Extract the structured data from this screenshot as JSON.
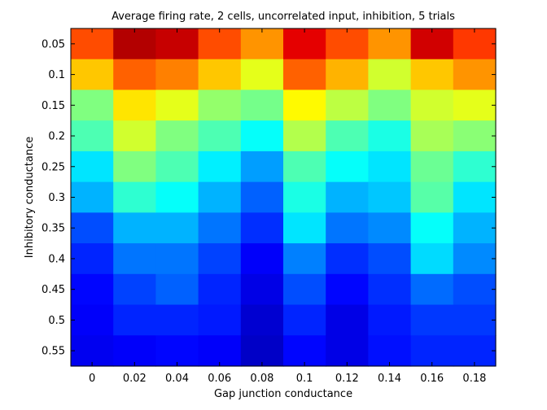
{
  "chart_data": {
    "type": "heatmap",
    "title": "Average firing rate, 2 cells, uncorrelated input, inhibition, 5 trials",
    "xlabel": "Gap junction conductance",
    "ylabel": "Inhibitory conductance",
    "x_tick_labels": [
      "0",
      "0.02",
      "0.04",
      "0.06",
      "0.08",
      "0.1",
      "0.12",
      "0.14",
      "0.16",
      "0.18"
    ],
    "y_tick_labels": [
      "0.05",
      "0.1",
      "0.15",
      "0.2",
      "0.25",
      "0.3",
      "0.35",
      "0.4",
      "0.45",
      "0.5",
      "0.55"
    ],
    "colormap": "jet",
    "color_range": [
      0,
      1
    ],
    "values": [
      [
        0.8,
        0.68,
        0.5,
        0.45,
        0.35,
        0.3,
        0.2,
        0.16,
        0.13,
        0.12,
        0.11
      ],
      [
        0.95,
        0.78,
        0.65,
        0.58,
        0.5,
        0.42,
        0.3,
        0.24,
        0.19,
        0.16,
        0.12
      ],
      [
        0.93,
        0.75,
        0.6,
        0.5,
        0.45,
        0.38,
        0.3,
        0.24,
        0.22,
        0.16,
        0.13
      ],
      [
        0.8,
        0.68,
        0.52,
        0.45,
        0.36,
        0.3,
        0.24,
        0.19,
        0.16,
        0.15,
        0.12
      ],
      [
        0.73,
        0.6,
        0.49,
        0.38,
        0.28,
        0.22,
        0.17,
        0.12,
        0.1,
        0.08,
        0.07
      ],
      [
        0.9,
        0.78,
        0.63,
        0.55,
        0.45,
        0.4,
        0.35,
        0.25,
        0.2,
        0.16,
        0.13
      ],
      [
        0.8,
        0.7,
        0.56,
        0.45,
        0.38,
        0.3,
        0.24,
        0.17,
        0.13,
        0.1,
        0.1
      ],
      [
        0.73,
        0.58,
        0.5,
        0.4,
        0.35,
        0.32,
        0.26,
        0.2,
        0.17,
        0.15,
        0.14
      ],
      [
        0.92,
        0.68,
        0.58,
        0.54,
        0.48,
        0.46,
        0.38,
        0.34,
        0.23,
        0.18,
        0.16
      ],
      [
        0.82,
        0.73,
        0.6,
        0.51,
        0.42,
        0.35,
        0.3,
        0.26,
        0.2,
        0.18,
        0.16
      ]
    ]
  }
}
